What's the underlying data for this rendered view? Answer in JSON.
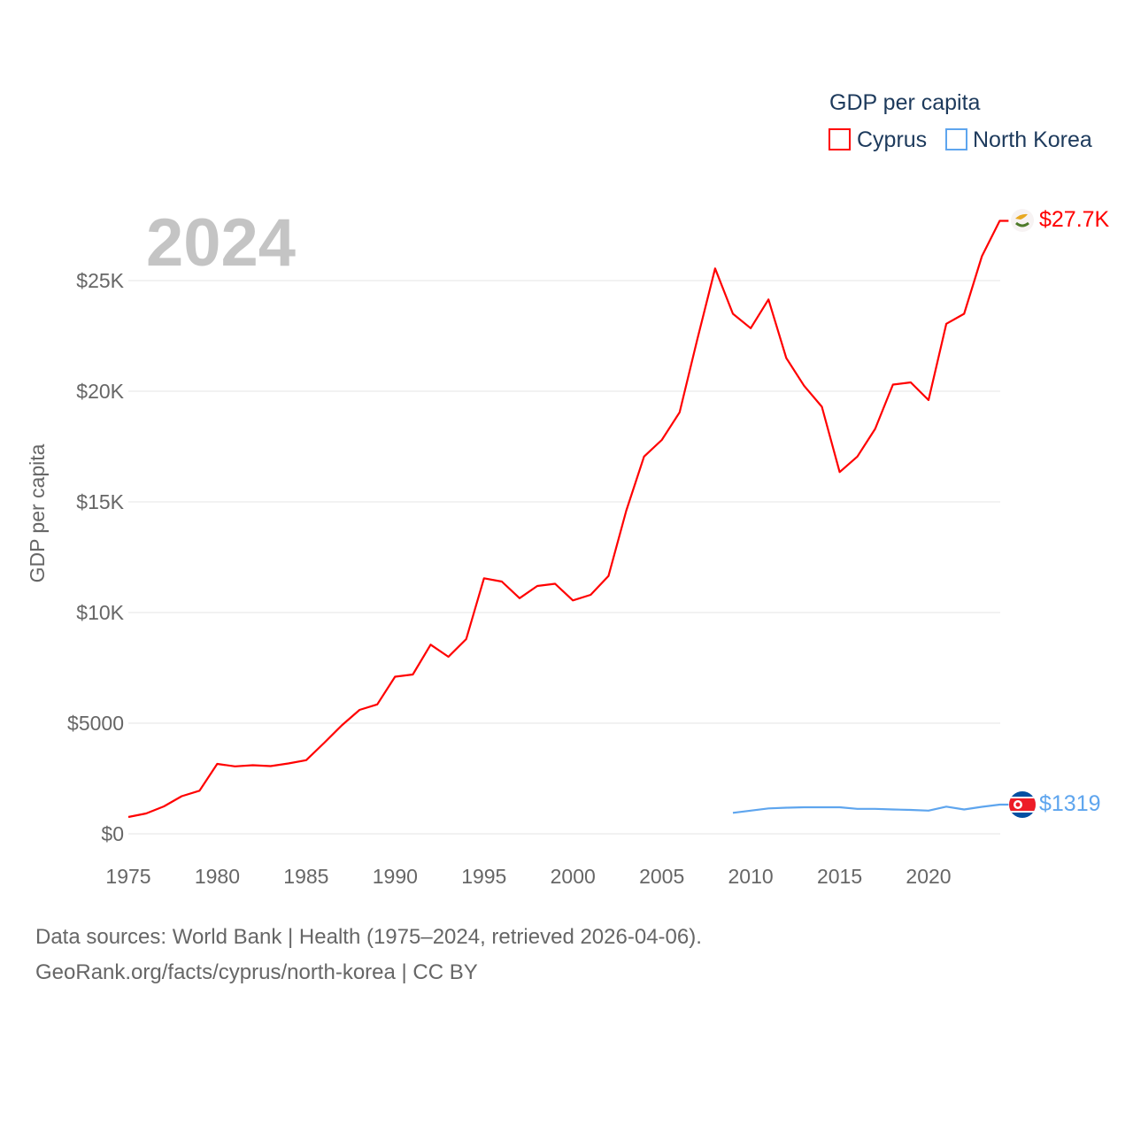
{
  "chart_data": {
    "type": "line",
    "title": "",
    "year_label": "2024",
    "xlabel": "",
    "ylabel": "GDP per capita",
    "xlim": [
      1975,
      2024
    ],
    "ylim": [
      0,
      27700
    ],
    "grid": true,
    "legend": {
      "title": "GDP per capita",
      "placement": "top-right"
    },
    "x_ticks": [
      "1975",
      "1980",
      "1985",
      "1990",
      "1995",
      "2000",
      "2005",
      "2010",
      "2015",
      "2020"
    ],
    "y_ticks": [
      {
        "value": 0,
        "label": "$0"
      },
      {
        "value": 5000,
        "label": "$5000"
      },
      {
        "value": 10000,
        "label": "$10K"
      },
      {
        "value": 15000,
        "label": "$15K"
      },
      {
        "value": 20000,
        "label": "$20K"
      },
      {
        "value": 25000,
        "label": "$25K"
      }
    ],
    "series": [
      {
        "name": "Cyprus",
        "color": "#ff0000",
        "end_label": "$27.7K",
        "flag": "cyprus-flag",
        "x": [
          1975,
          1976,
          1977,
          1978,
          1979,
          1980,
          1981,
          1982,
          1983,
          1984,
          1985,
          1986,
          1987,
          1988,
          1989,
          1990,
          1991,
          1992,
          1993,
          1994,
          1995,
          1996,
          1997,
          1998,
          1999,
          2000,
          2001,
          2002,
          2003,
          2004,
          2005,
          2006,
          2007,
          2008,
          2009,
          2010,
          2011,
          2012,
          2013,
          2014,
          2015,
          2016,
          2017,
          2018,
          2019,
          2020,
          2021,
          2022,
          2023,
          2024
        ],
        "values": [
          760,
          920,
          1240,
          1700,
          1950,
          3160,
          3050,
          3100,
          3060,
          3180,
          3330,
          4100,
          4900,
          5600,
          5850,
          7100,
          7200,
          8550,
          8000,
          8800,
          11550,
          11400,
          10650,
          11200,
          11300,
          10550,
          10800,
          11650,
          14600,
          17050,
          17800,
          19050,
          22350,
          25550,
          23500,
          22850,
          24150,
          21500,
          20250,
          19300,
          16350,
          17050,
          18300,
          20300,
          20400,
          19600,
          23050,
          23500,
          26100,
          27700
        ]
      },
      {
        "name": "North Korea",
        "color": "#5ea5ee",
        "end_label": "$1319",
        "flag": "north-korea-flag",
        "x": [
          2009,
          2010,
          2011,
          2012,
          2013,
          2014,
          2015,
          2016,
          2017,
          2018,
          2019,
          2020,
          2021,
          2022,
          2023,
          2024
        ],
        "values": [
          950,
          1050,
          1150,
          1180,
          1200,
          1200,
          1200,
          1130,
          1130,
          1100,
          1080,
          1050,
          1230,
          1100,
          1220,
          1319
        ]
      }
    ]
  },
  "footer": {
    "line1": "Data sources: World Bank | Health (1975–2024, retrieved 2026-04-06).",
    "line2": "GeoRank.org/facts/cyprus/north-korea | CC BY"
  }
}
